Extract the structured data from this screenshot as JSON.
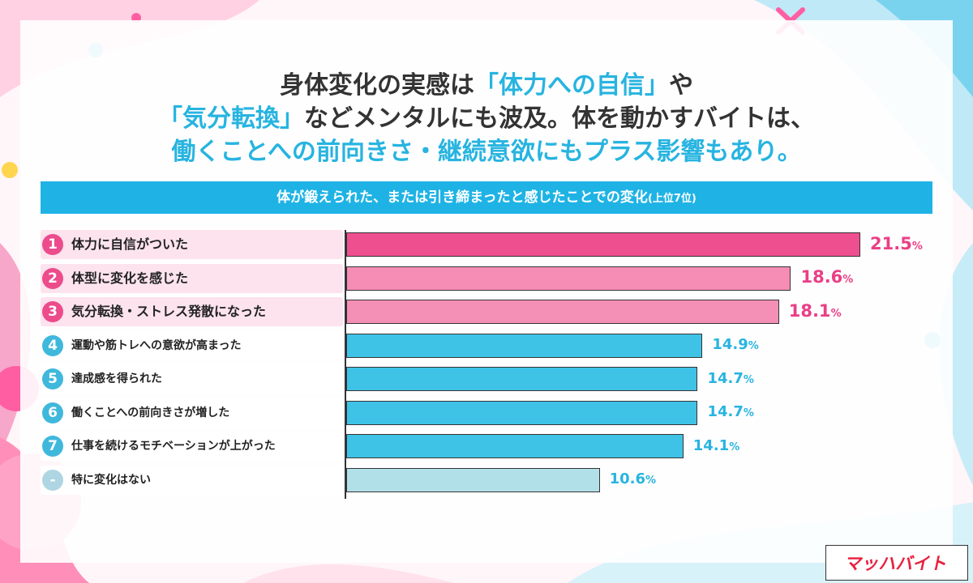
{
  "title": {
    "line1": [
      "身体変化の実感は",
      "「体力への自信」",
      "や"
    ],
    "line2": [
      "「気分転換」",
      "などメンタルにも波及。体を動かすバイトは、"
    ],
    "line3": [
      "働くことへの前向きさ・継続意欲にもプラス影響もあり。"
    ]
  },
  "subtitle": {
    "main": "体が鍛えられた、または引き締まったと感じたことでの変化",
    "note": "(上位7位)"
  },
  "colors": {
    "pink_dark": "#ee4f8e",
    "pink_mid": "#f58db5",
    "pink_light": "#f48fb6",
    "blue": "#3ec3e6",
    "grey": "#b2e0e9",
    "text_pink": "#ea3f86",
    "text_blue": "#27b4e0",
    "header": "#1fb3e5"
  },
  "logo": {
    "text": "マッハバイト"
  },
  "chart_data": {
    "type": "bar",
    "orientation": "horizontal",
    "unit": "%",
    "title": "体が鍛えられた、または引き締まったと感じたことでの変化(上位7位)",
    "categories": [
      {
        "rank": "1",
        "label": "体力に自信がついた",
        "value": 21.5,
        "value_label": "21.5"
      },
      {
        "rank": "2",
        "label": "体型に変化を感じた",
        "value": 18.6,
        "value_label": "18.6"
      },
      {
        "rank": "3",
        "label": "気分転換・ストレス発散になった",
        "value": 18.1,
        "value_label": "18.1"
      },
      {
        "rank": "4",
        "label": "運動や筋トレへの意欲が高まった",
        "value": 14.9,
        "value_label": "14.9"
      },
      {
        "rank": "5",
        "label": "達成感を得られた",
        "value": 14.7,
        "value_label": "14.7"
      },
      {
        "rank": "6",
        "label": "働くことへの前向きさが増した",
        "value": 14.7,
        "value_label": "14.7"
      },
      {
        "rank": "7",
        "label": "仕事を続けるモチベーションが上がった",
        "value": 14.1,
        "value_label": "14.1"
      },
      {
        "rank": "-",
        "label": "特に変化はない",
        "value": 10.6,
        "value_label": "10.6"
      }
    ],
    "percent_sign": "%",
    "xlim": [
      0,
      21.5
    ],
    "grid": false,
    "legend": "none"
  }
}
